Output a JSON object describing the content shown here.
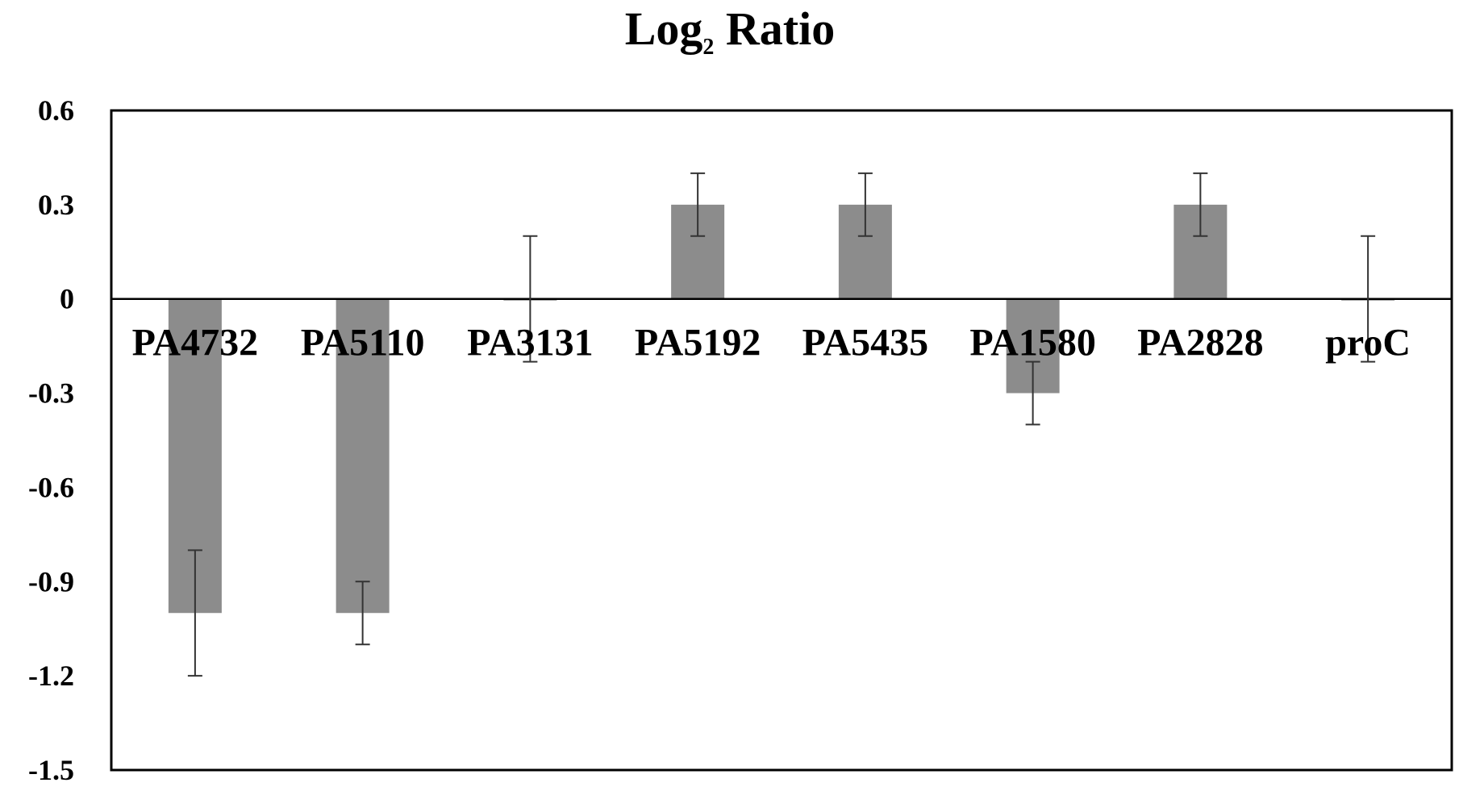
{
  "chart_data": {
    "type": "bar",
    "title": "Log2 Ratio",
    "title_main": "Log",
    "title_sub": "2",
    "title_rest": " Ratio",
    "xlabel": "",
    "ylabel": "",
    "categories": [
      "PA4732",
      "PA5110",
      "PA3131",
      "PA5192",
      "PA5435",
      "PA1580",
      "PA2828",
      "proC"
    ],
    "values": [
      -1.0,
      -1.0,
      0.0,
      0.3,
      0.3,
      -0.3,
      0.3,
      0.0
    ],
    "errors": [
      0.2,
      0.1,
      0.2,
      0.1,
      0.1,
      0.1,
      0.1,
      0.2
    ],
    "ylim": [
      -1.5,
      0.6
    ],
    "yticks": [
      0.6,
      0.3,
      0,
      -0.3,
      -0.6,
      -0.9,
      -1.2,
      -1.5
    ],
    "ytick_labels": [
      "0.6",
      "0.3",
      "0",
      "-0.3",
      "-0.6",
      "-0.9",
      "-1.2",
      "-1.5"
    ],
    "grid": false,
    "legend": "none",
    "colors": {
      "bar": "#8c8c8c",
      "axis": "#000000",
      "text": "#000000",
      "background": "#ffffff"
    }
  }
}
